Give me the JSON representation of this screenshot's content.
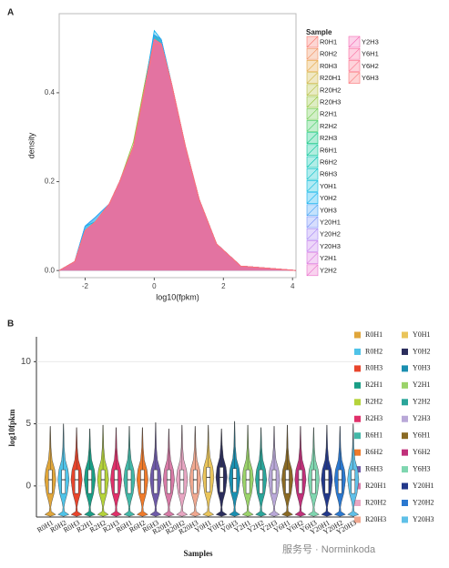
{
  "chart_data": [
    {
      "type": "density",
      "panel": "A",
      "xlabel": "log10(fpkm)",
      "ylabel": "density",
      "legend_title": "Sample",
      "xlim": [
        -2.75,
        4.1
      ],
      "ylim": [
        -0.016,
        0.578
      ],
      "xticks": [
        -2,
        0,
        2,
        4
      ],
      "yticks": [
        {
          "value": 0,
          "label": "0.0"
        },
        {
          "value": 0.2,
          "label": "0.2"
        },
        {
          "value": 0.4,
          "label": "0.4"
        }
      ],
      "x": [
        -2.75,
        -2.3,
        -2,
        -1.7,
        -1.3,
        -1,
        -0.6,
        -0.3,
        0,
        0.2,
        0.5,
        0.9,
        1.3,
        1.8,
        2.5,
        4.1
      ],
      "series": [
        {
          "name": "R0H1",
          "color": "#f8766d",
          "values": [
            0,
            0.02,
            0.09,
            0.11,
            0.15,
            0.2,
            0.28,
            0.4,
            0.52,
            0.51,
            0.42,
            0.28,
            0.16,
            0.06,
            0.01,
            0
          ]
        },
        {
          "name": "R0H2",
          "color": "#f08c5a",
          "values": [
            0,
            0.02,
            0.09,
            0.11,
            0.15,
            0.2,
            0.28,
            0.4,
            0.52,
            0.51,
            0.42,
            0.28,
            0.16,
            0.06,
            0.01,
            0
          ]
        },
        {
          "name": "R0H3",
          "color": "#e3a33a",
          "values": [
            0,
            0.02,
            0.09,
            0.11,
            0.15,
            0.2,
            0.28,
            0.41,
            0.53,
            0.51,
            0.42,
            0.28,
            0.16,
            0.06,
            0.01,
            0
          ]
        },
        {
          "name": "R20H1",
          "color": "#cdb23a",
          "values": [
            0,
            0.02,
            0.09,
            0.11,
            0.15,
            0.2,
            0.28,
            0.4,
            0.52,
            0.51,
            0.42,
            0.28,
            0.16,
            0.06,
            0.01,
            0
          ]
        },
        {
          "name": "R20H2",
          "color": "#b2bd3a",
          "values": [
            0,
            0.02,
            0.09,
            0.11,
            0.15,
            0.2,
            0.28,
            0.4,
            0.52,
            0.51,
            0.42,
            0.28,
            0.16,
            0.06,
            0.01,
            0
          ]
        },
        {
          "name": "R20H3",
          "color": "#93c43a",
          "values": [
            0,
            0.02,
            0.09,
            0.11,
            0.15,
            0.2,
            0.29,
            0.41,
            0.53,
            0.52,
            0.42,
            0.28,
            0.16,
            0.06,
            0.01,
            0
          ]
        },
        {
          "name": "R2H1",
          "color": "#6cc94a",
          "values": [
            0,
            0.02,
            0.09,
            0.11,
            0.15,
            0.2,
            0.28,
            0.4,
            0.52,
            0.51,
            0.42,
            0.28,
            0.16,
            0.06,
            0.01,
            0
          ]
        },
        {
          "name": "R2H2",
          "color": "#3ccb60",
          "values": [
            0,
            0.02,
            0.09,
            0.11,
            0.15,
            0.2,
            0.28,
            0.4,
            0.52,
            0.51,
            0.42,
            0.28,
            0.16,
            0.06,
            0.01,
            0
          ]
        },
        {
          "name": "R2H3",
          "color": "#00c47a",
          "values": [
            0,
            0.02,
            0.09,
            0.11,
            0.15,
            0.2,
            0.28,
            0.4,
            0.53,
            0.52,
            0.42,
            0.28,
            0.16,
            0.06,
            0.01,
            0
          ]
        },
        {
          "name": "R6H1",
          "color": "#00c596",
          "values": [
            0,
            0.02,
            0.09,
            0.11,
            0.15,
            0.2,
            0.28,
            0.4,
            0.52,
            0.51,
            0.42,
            0.28,
            0.16,
            0.06,
            0.01,
            0
          ]
        },
        {
          "name": "R6H2",
          "color": "#00c3b0",
          "values": [
            0,
            0.02,
            0.09,
            0.11,
            0.15,
            0.2,
            0.28,
            0.4,
            0.52,
            0.51,
            0.42,
            0.28,
            0.16,
            0.06,
            0.01,
            0
          ]
        },
        {
          "name": "R6H3",
          "color": "#00bfc7",
          "values": [
            0,
            0.02,
            0.1,
            0.11,
            0.15,
            0.2,
            0.28,
            0.4,
            0.53,
            0.52,
            0.42,
            0.28,
            0.16,
            0.06,
            0.01,
            0
          ]
        },
        {
          "name": "Y0H1",
          "color": "#00b8dc",
          "values": [
            0,
            0.02,
            0.1,
            0.12,
            0.15,
            0.2,
            0.28,
            0.4,
            0.53,
            0.52,
            0.42,
            0.28,
            0.16,
            0.06,
            0.01,
            0
          ]
        },
        {
          "name": "Y0H2",
          "color": "#00aded",
          "values": [
            0,
            0.02,
            0.1,
            0.12,
            0.15,
            0.2,
            0.28,
            0.4,
            0.54,
            0.52,
            0.42,
            0.28,
            0.16,
            0.06,
            0.01,
            0
          ]
        },
        {
          "name": "Y0H3",
          "color": "#3ea0f5",
          "values": [
            0,
            0.02,
            0.1,
            0.12,
            0.15,
            0.2,
            0.28,
            0.4,
            0.53,
            0.52,
            0.42,
            0.28,
            0.16,
            0.06,
            0.01,
            0
          ]
        },
        {
          "name": "Y20H1",
          "color": "#7b93f8",
          "values": [
            0,
            0.02,
            0.09,
            0.11,
            0.15,
            0.2,
            0.28,
            0.4,
            0.52,
            0.51,
            0.42,
            0.28,
            0.16,
            0.06,
            0.01,
            0
          ]
        },
        {
          "name": "Y20H2",
          "color": "#a485f5",
          "values": [
            0,
            0.02,
            0.09,
            0.11,
            0.15,
            0.2,
            0.28,
            0.4,
            0.52,
            0.51,
            0.42,
            0.28,
            0.16,
            0.06,
            0.01,
            0
          ]
        },
        {
          "name": "Y20H3",
          "color": "#c27bec",
          "values": [
            0,
            0.02,
            0.09,
            0.11,
            0.15,
            0.2,
            0.28,
            0.4,
            0.52,
            0.51,
            0.42,
            0.28,
            0.16,
            0.06,
            0.01,
            0
          ]
        },
        {
          "name": "Y2H1",
          "color": "#d973de",
          "values": [
            0,
            0.02,
            0.09,
            0.11,
            0.15,
            0.2,
            0.28,
            0.4,
            0.52,
            0.51,
            0.42,
            0.28,
            0.16,
            0.06,
            0.01,
            0
          ]
        },
        {
          "name": "Y2H2",
          "color": "#ea6ecb",
          "values": [
            0,
            0.02,
            0.09,
            0.11,
            0.15,
            0.2,
            0.28,
            0.4,
            0.52,
            0.51,
            0.42,
            0.28,
            0.16,
            0.06,
            0.01,
            0
          ]
        },
        {
          "name": "Y2H3",
          "color": "#f56bb5",
          "values": [
            0,
            0.02,
            0.09,
            0.11,
            0.15,
            0.2,
            0.28,
            0.4,
            0.52,
            0.51,
            0.42,
            0.28,
            0.16,
            0.06,
            0.01,
            0
          ]
        },
        {
          "name": "Y6H1",
          "color": "#fb6b9e",
          "values": [
            0,
            0.02,
            0.09,
            0.11,
            0.15,
            0.2,
            0.28,
            0.4,
            0.52,
            0.51,
            0.42,
            0.28,
            0.16,
            0.06,
            0.01,
            0
          ]
        },
        {
          "name": "Y6H2",
          "color": "#fd6e88",
          "values": [
            0,
            0.02,
            0.09,
            0.11,
            0.15,
            0.2,
            0.28,
            0.4,
            0.51,
            0.51,
            0.42,
            0.28,
            0.16,
            0.06,
            0.01,
            0
          ]
        },
        {
          "name": "Y6H3",
          "color": "#fb7376",
          "values": [
            0,
            0.02,
            0.09,
            0.11,
            0.15,
            0.2,
            0.28,
            0.4,
            0.52,
            0.51,
            0.42,
            0.28,
            0.16,
            0.06,
            0.01,
            0
          ]
        }
      ]
    },
    {
      "type": "violin",
      "panel": "B",
      "xlabel": "Samples",
      "ylabel": "log10fpkm",
      "ylim": [
        -2.5,
        12
      ],
      "yticks": [
        0,
        5,
        10
      ],
      "grid": true,
      "categories": [
        "R0H1",
        "R0H2",
        "R0H3",
        "R2H1",
        "R2H2",
        "R2H3",
        "R6H1",
        "R6H2",
        "R6H3",
        "R20H1",
        "R20H2",
        "R20H3",
        "Y0H1",
        "Y0H2",
        "Y0H3",
        "Y2H1",
        "Y2H2",
        "Y2H3",
        "Y6H1",
        "Y6H2",
        "Y6H3",
        "Y20H1",
        "Y20H2",
        "Y20H3"
      ],
      "colors": [
        "#e0a63a",
        "#4fc3e8",
        "#e8452c",
        "#1a9e86",
        "#b5d33a",
        "#e0306a",
        "#42b8a8",
        "#ef7a2a",
        "#6e5aa8",
        "#d77aa6",
        "#e7a6c2",
        "#f0a890",
        "#e9c45a",
        "#2b2d5c",
        "#1b8fb0",
        "#9bd36a",
        "#2aa59a",
        "#b9a8d8",
        "#8a6a24",
        "#c0307a",
        "#7fd6b0",
        "#22388a",
        "#2a78d0",
        "#5fc0e8"
      ],
      "min": [
        -2.3,
        -2.3,
        -2.3,
        -2.3,
        -2.3,
        -2.3,
        -2.3,
        -2.3,
        -2.3,
        -2.3,
        -2.3,
        -2.3,
        -2.3,
        -2.3,
        -2.3,
        -2.3,
        -2.3,
        -2.3,
        -2.3,
        -2.3,
        -2.3,
        -2.3,
        -2.3,
        -2.3
      ],
      "q1": [
        -0.6,
        -0.6,
        -0.6,
        -0.6,
        -0.6,
        -0.6,
        -0.6,
        -0.6,
        -0.6,
        -0.6,
        -0.6,
        -0.6,
        -0.5,
        -0.5,
        -0.5,
        -0.6,
        -0.6,
        -0.6,
        -0.6,
        -0.6,
        -0.6,
        -0.6,
        -0.6,
        -0.6
      ],
      "median": [
        0.5,
        0.5,
        0.5,
        0.5,
        0.5,
        0.5,
        0.5,
        0.5,
        0.5,
        0.5,
        0.5,
        0.5,
        0.7,
        0.7,
        0.6,
        0.5,
        0.5,
        0.5,
        0.5,
        0.5,
        0.5,
        0.5,
        0.5,
        0.5
      ],
      "q3": [
        1.3,
        1.3,
        1.3,
        1.3,
        1.3,
        1.3,
        1.3,
        1.3,
        1.3,
        1.3,
        1.3,
        1.3,
        1.5,
        1.5,
        1.4,
        1.3,
        1.3,
        1.3,
        1.3,
        1.3,
        1.3,
        1.3,
        1.3,
        1.3
      ],
      "max": [
        4.8,
        5,
        4.7,
        4.6,
        4.9,
        4.7,
        4.8,
        4.7,
        5.1,
        4.6,
        4.9,
        4.8,
        4.9,
        4.6,
        5.2,
        4.9,
        4.7,
        4.8,
        4.9,
        4.8,
        4.7,
        4.9,
        4.8,
        5
      ]
    }
  ],
  "watermark": "服务号 · Norminkoda"
}
